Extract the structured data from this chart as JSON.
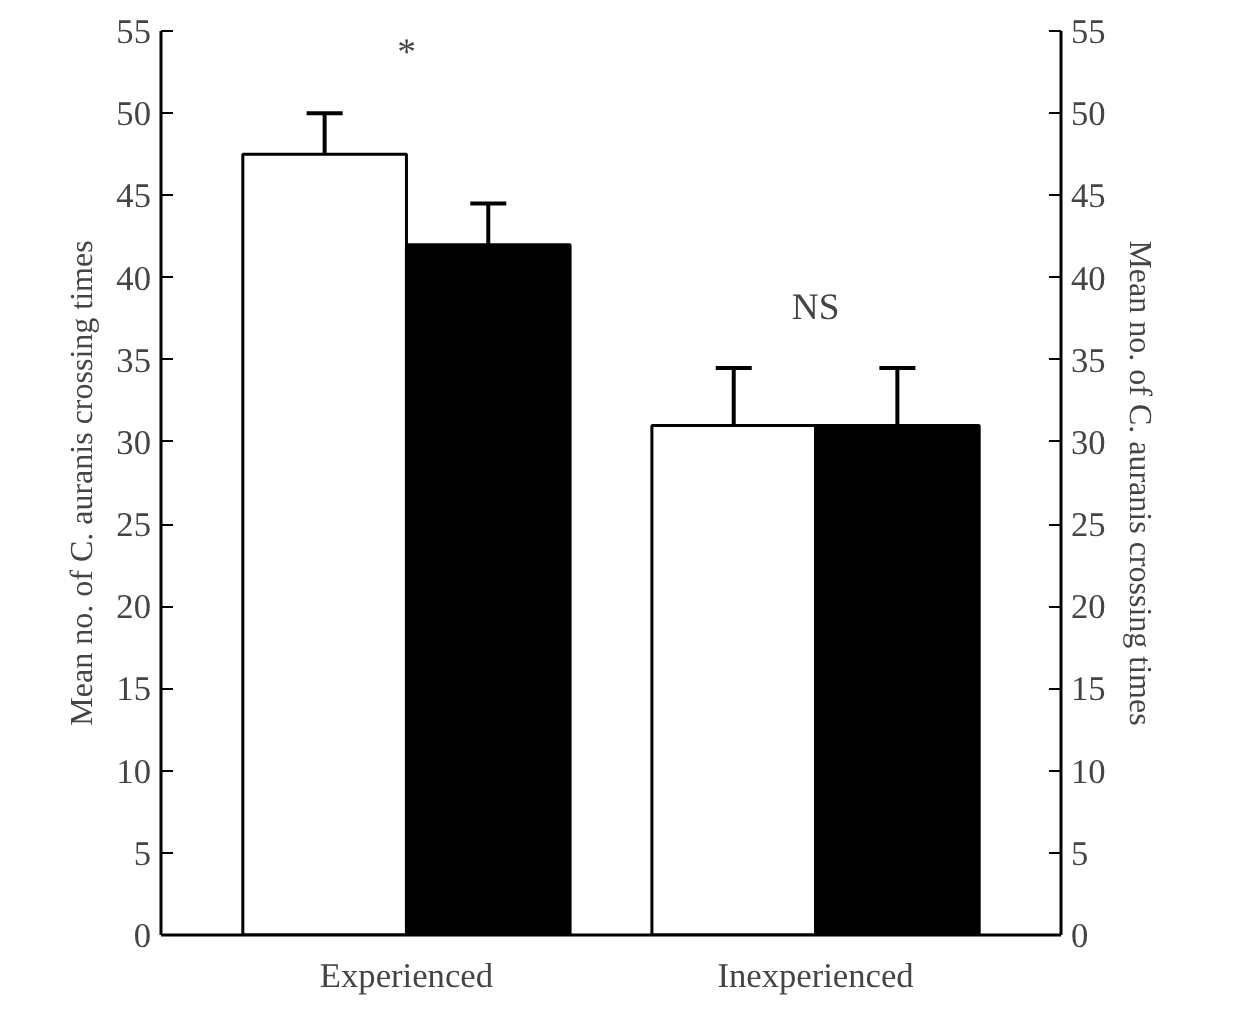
{
  "chart_data": {
    "type": "bar",
    "categories": [
      "Experienced",
      "Inexperienced"
    ],
    "series": [
      {
        "color": "#ffffff",
        "values": [
          47.5,
          31
        ],
        "errors": [
          [
            47.5,
            50
          ],
          [
            31,
            34.5
          ]
        ]
      },
      {
        "color": "#000000",
        "values": [
          42,
          31
        ],
        "errors": [
          [
            42,
            44.5
          ],
          [
            31,
            34.5
          ]
        ]
      }
    ],
    "ylabel": "Mean no. of C. auranis crossing times",
    "y2label": "Mean no. of C. auranis crossing times",
    "ylim": [
      0,
      55
    ],
    "yticks": [
      0,
      5,
      10,
      15,
      20,
      25,
      30,
      35,
      40,
      45,
      50,
      55
    ],
    "y2lim": [
      0,
      55
    ],
    "y2ticks": [
      0,
      5,
      10,
      15,
      20,
      25,
      30,
      35,
      40,
      45,
      50,
      55
    ],
    "annotations": [
      "*",
      "NS"
    ],
    "grid": false
  }
}
